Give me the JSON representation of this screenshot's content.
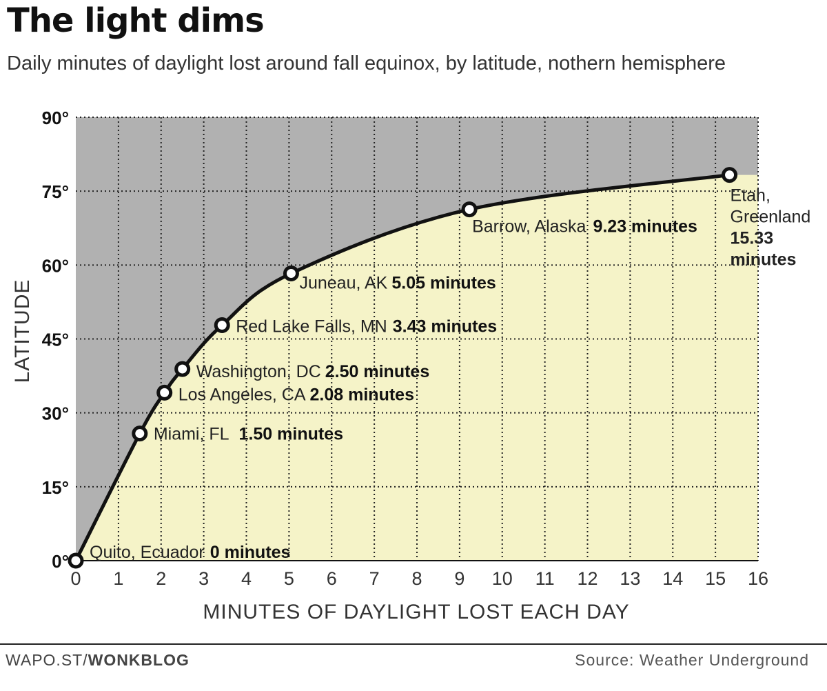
{
  "header": {
    "title": "The light dims",
    "subtitle": "Daily minutes of daylight lost around fall equinox, by latitude, nothern hemisphere"
  },
  "footer": {
    "credit_prefix": "WAPO.ST/",
    "credit_bold": "WONKBLOG",
    "source": "Source: Weather Underground"
  },
  "colors": {
    "dark_region": "#b1b1b1",
    "light_region": "#f5f3c8",
    "curve": "#111111",
    "grid": "#222222"
  },
  "chart_data": {
    "type": "line",
    "title": "The light dims",
    "subtitle": "Daily minutes of daylight lost around fall equinox, by latitude, nothern hemisphere",
    "xlabel": "MINUTES OF DAYLIGHT LOST EACH DAY",
    "ylabel": "LATITUDE",
    "xlim": [
      0,
      16
    ],
    "ylim": [
      0,
      90
    ],
    "x_ticks": [
      "0",
      "1",
      "2",
      "3",
      "4",
      "5",
      "6",
      "7",
      "8",
      "9",
      "10",
      "11",
      "12",
      "13",
      "14",
      "15",
      "16"
    ],
    "y_ticks": [
      "0°",
      "15°",
      "30°",
      "45°",
      "60°",
      "75°",
      "90°"
    ],
    "y_tick_values": [
      0,
      15,
      30,
      45,
      60,
      75,
      90
    ],
    "grid": true,
    "points": [
      {
        "place": "Quito, Ecuador",
        "value_label": "0 minutes",
        "x": 0,
        "y": 0
      },
      {
        "place": "Miami, FL",
        "value_label": "1.50 minutes",
        "x": 1.5,
        "y": 25.8
      },
      {
        "place": "Los Angeles, CA",
        "value_label": "2.08 minutes",
        "x": 2.08,
        "y": 34.1
      },
      {
        "place": "Washington, DC",
        "value_label": "2.50 minutes",
        "x": 2.5,
        "y": 38.9
      },
      {
        "place": "Red Lake Falls, MN",
        "value_label": "3.43 minutes",
        "x": 3.43,
        "y": 47.8
      },
      {
        "place": "Juneau, AK",
        "value_label": "5.05 minutes",
        "x": 5.05,
        "y": 58.3
      },
      {
        "place": "Barrow, Alaska",
        "value_label": "9.23 minutes",
        "x": 9.23,
        "y": 71.3
      },
      {
        "place": "Etah, Greenland",
        "place_lines": [
          "Etah,",
          "Greenland"
        ],
        "value_lines": [
          "15.33",
          "minutes"
        ],
        "value_label": "15.33 minutes",
        "x": 15.33,
        "y": 78.3
      }
    ]
  }
}
